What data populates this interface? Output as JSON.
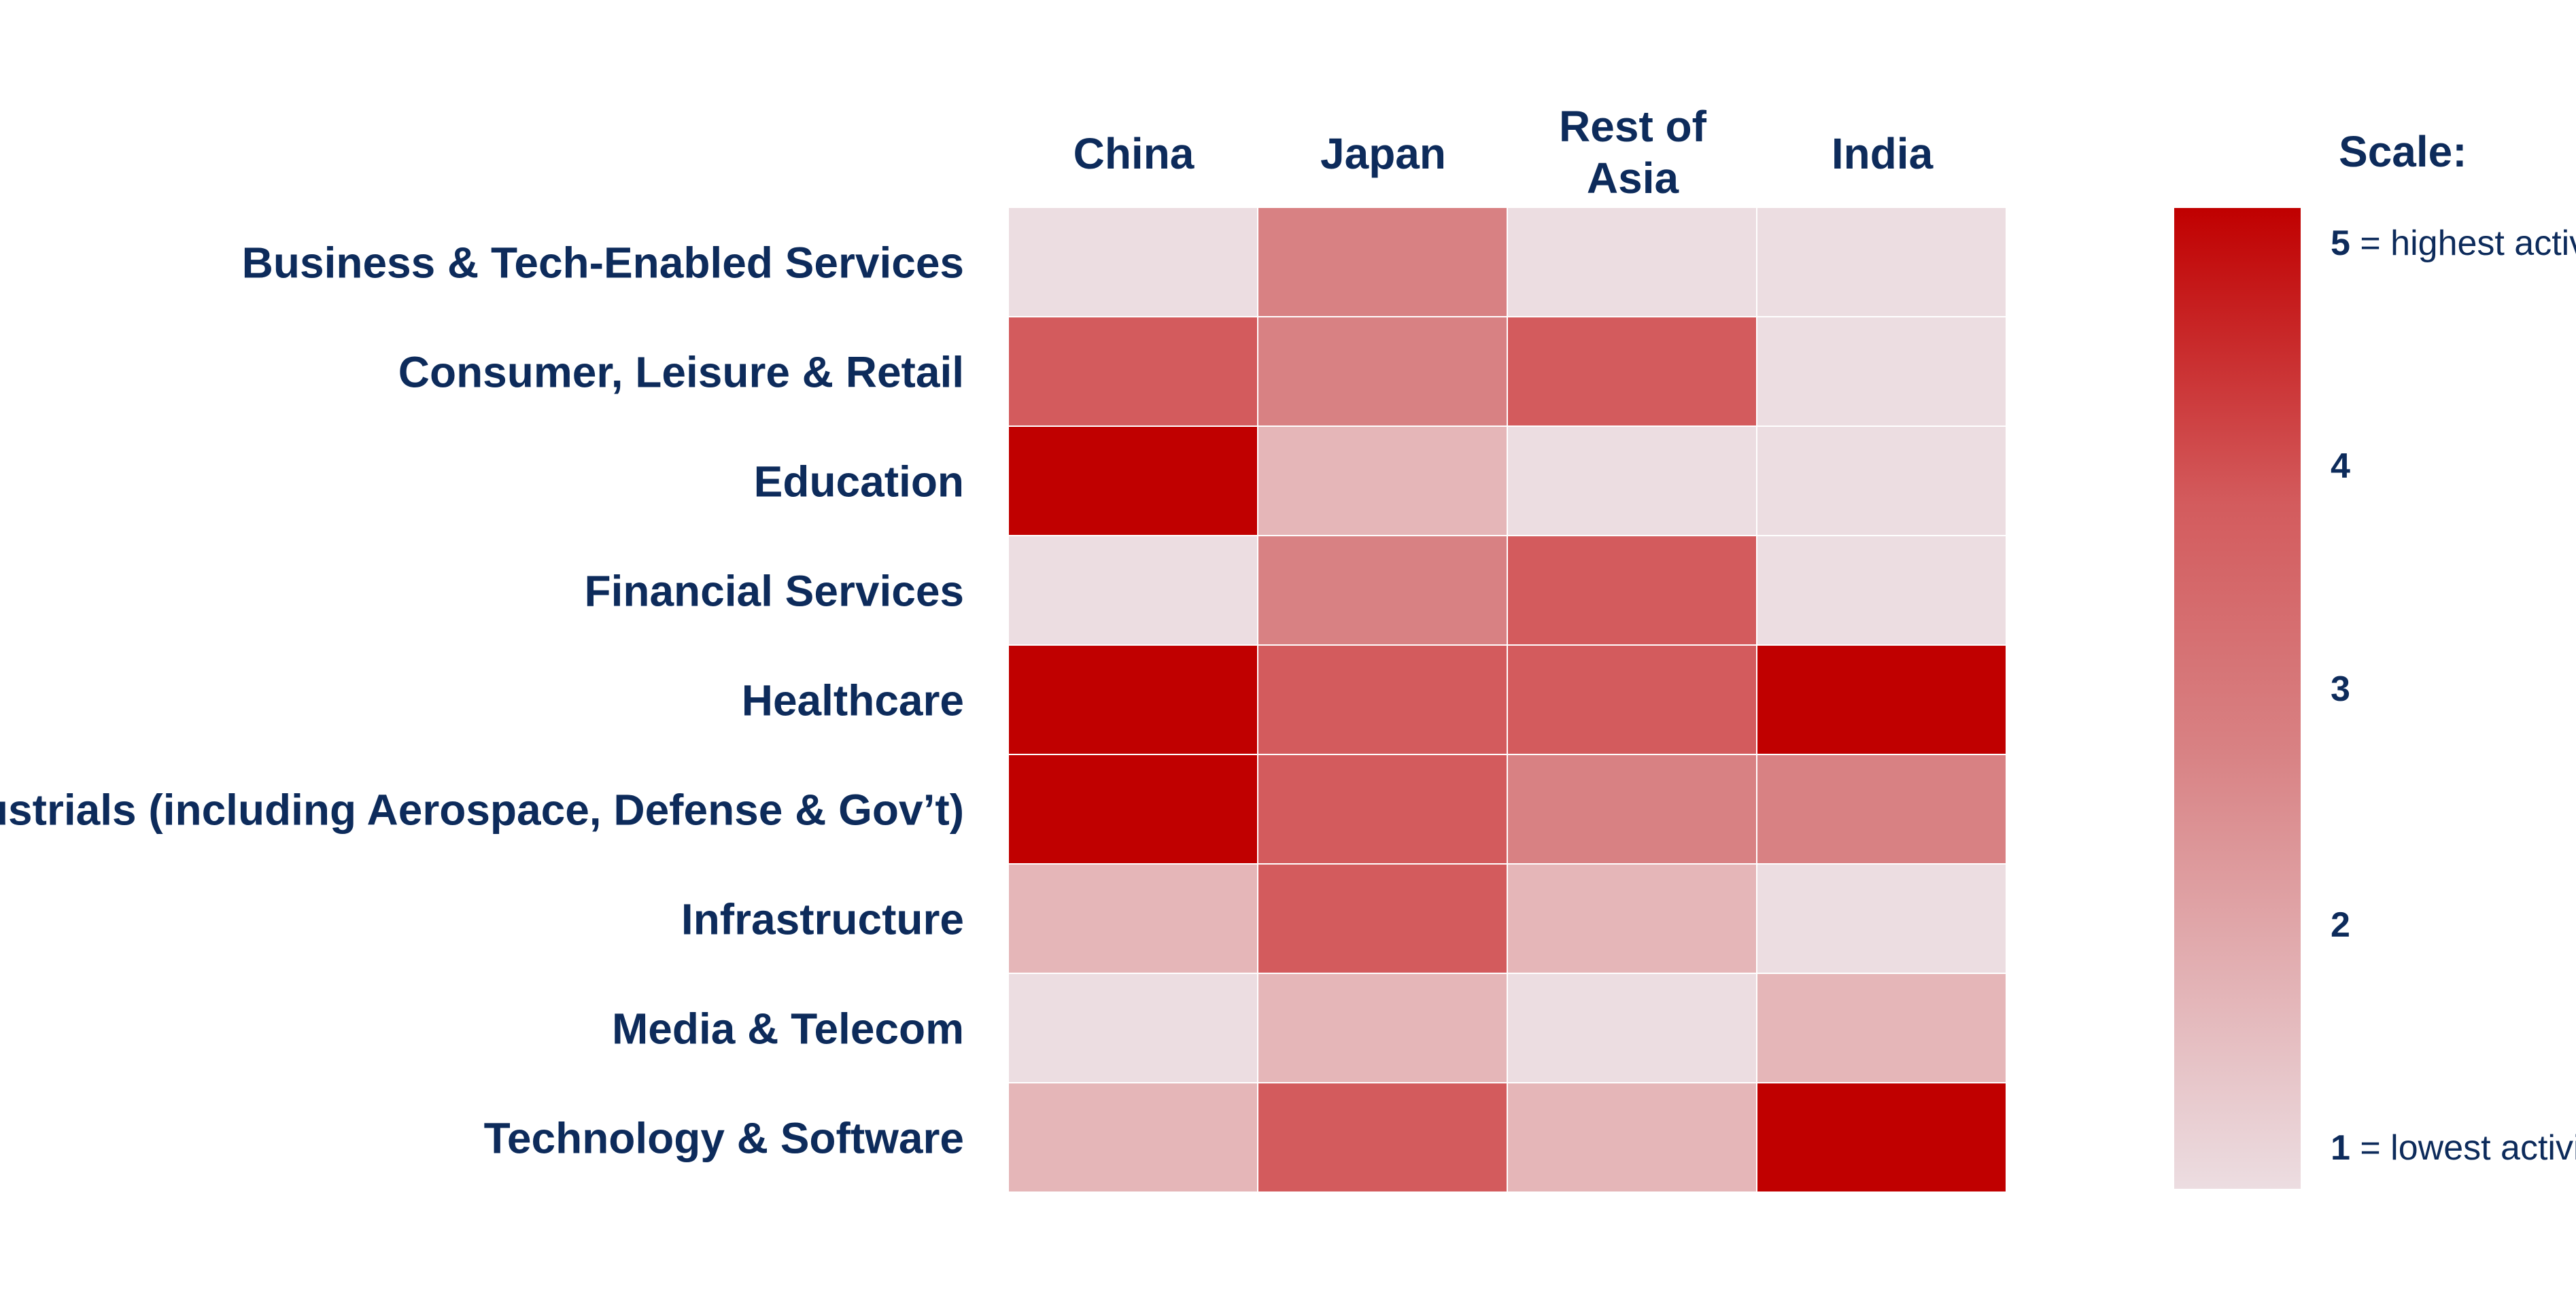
{
  "chart_data": {
    "type": "heatmap",
    "columns": [
      "China",
      "Japan",
      "Rest of Asia",
      "India"
    ],
    "rows": [
      "Business & Tech-Enabled Services",
      "Consumer, Leisure & Retail",
      "Education",
      "Financial Services",
      "Healthcare",
      "Industrials  (including Aerospace, Defense & Gov’t)",
      "Infrastructure",
      "Media & Telecom",
      "Technology & Software"
    ],
    "values": [
      [
        1,
        3,
        1,
        1
      ],
      [
        4,
        3,
        4,
        1
      ],
      [
        5,
        2,
        1,
        1
      ],
      [
        1,
        3,
        4,
        1
      ],
      [
        5,
        4,
        4,
        5
      ],
      [
        5,
        4,
        3,
        3
      ],
      [
        2,
        4,
        2,
        1
      ],
      [
        1,
        2,
        1,
        2
      ],
      [
        2,
        4,
        2,
        5
      ]
    ],
    "legend": {
      "title": "Scale:",
      "min": 1,
      "max": 5,
      "min_color": "#ecdde1",
      "max_color": "#c00000",
      "ticks": [
        {
          "value": 5,
          "label": "5",
          "suffix": " = highest activity"
        },
        {
          "value": 4,
          "label": "4",
          "suffix": ""
        },
        {
          "value": 3,
          "label": "3",
          "suffix": ""
        },
        {
          "value": 2,
          "label": "2",
          "suffix": ""
        },
        {
          "value": 1,
          "label": "1",
          "suffix": " = lowest activity"
        }
      ],
      "placement": "right"
    },
    "level_colors": {
      "1": "#ecdde1",
      "2": "#e5b6b8",
      "3": "#d88183",
      "4": "#d35b5d",
      "5": "#c00000"
    }
  }
}
